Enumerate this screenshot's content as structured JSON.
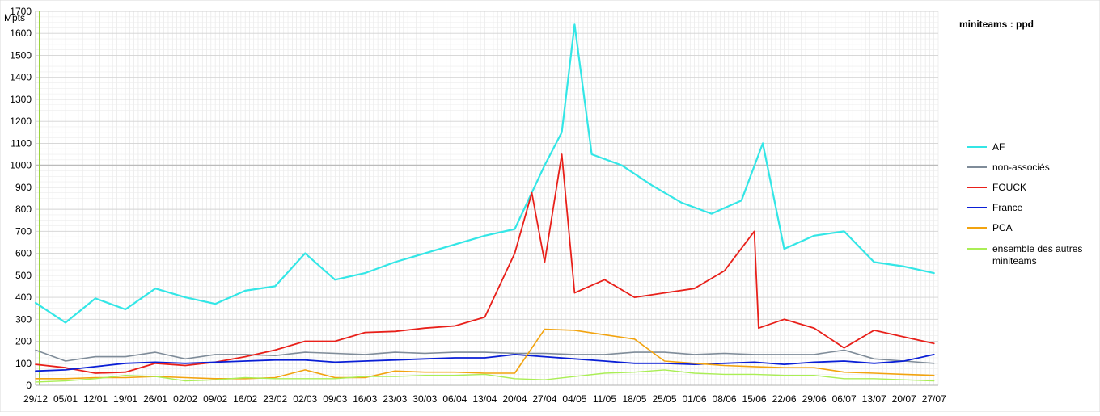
{
  "chart_data": {
    "type": "line",
    "title": "miniteams : ppd",
    "ylabel": "Mpts",
    "ylim": [
      0,
      1700
    ],
    "yticks": [
      0,
      100,
      200,
      300,
      400,
      500,
      600,
      700,
      800,
      900,
      1000,
      1100,
      1200,
      1300,
      1400,
      1500,
      1600,
      1700
    ],
    "x_tick_labels": [
      "29/12",
      "05/01",
      "12/01",
      "19/01",
      "26/01",
      "02/02",
      "09/02",
      "16/02",
      "23/02",
      "02/03",
      "09/03",
      "16/03",
      "23/03",
      "30/03",
      "06/04",
      "13/04",
      "20/04",
      "27/04",
      "04/05",
      "11/05",
      "18/05",
      "25/05",
      "01/06",
      "08/06",
      "15/06",
      "22/06",
      "29/06",
      "06/07",
      "13/07",
      "20/07",
      "27/07"
    ],
    "days": 211,
    "grid": true,
    "reference_line": {
      "value": 1000,
      "color": "#bbbbbb"
    },
    "legend_position": "right",
    "series": [
      {
        "name": "AF",
        "color": "#33e6e6",
        "width": 2.2,
        "points": [
          [
            0,
            375
          ],
          [
            7,
            285
          ],
          [
            14,
            395
          ],
          [
            21,
            345
          ],
          [
            28,
            440
          ],
          [
            35,
            400
          ],
          [
            42,
            370
          ],
          [
            49,
            430
          ],
          [
            56,
            450
          ],
          [
            63,
            600
          ],
          [
            70,
            480
          ],
          [
            77,
            510
          ],
          [
            84,
            560
          ],
          [
            91,
            600
          ],
          [
            98,
            640
          ],
          [
            105,
            680
          ],
          [
            112,
            710
          ],
          [
            119,
            1000
          ],
          [
            123,
            1150
          ],
          [
            126,
            1640
          ],
          [
            130,
            1050
          ],
          [
            137,
            1000
          ],
          [
            144,
            910
          ],
          [
            151,
            830
          ],
          [
            158,
            780
          ],
          [
            165,
            840
          ],
          [
            170,
            1100
          ],
          [
            175,
            620
          ],
          [
            182,
            680
          ],
          [
            189,
            700
          ],
          [
            196,
            560
          ],
          [
            203,
            540
          ],
          [
            210,
            510
          ]
        ]
      },
      {
        "name": "non-associés",
        "color": "#7f8c99",
        "width": 1.6,
        "points": [
          [
            0,
            160
          ],
          [
            7,
            110
          ],
          [
            14,
            130
          ],
          [
            21,
            130
          ],
          [
            28,
            150
          ],
          [
            35,
            120
          ],
          [
            42,
            140
          ],
          [
            49,
            140
          ],
          [
            56,
            135
          ],
          [
            63,
            150
          ],
          [
            70,
            145
          ],
          [
            77,
            140
          ],
          [
            84,
            150
          ],
          [
            91,
            145
          ],
          [
            98,
            150
          ],
          [
            105,
            150
          ],
          [
            112,
            145
          ],
          [
            119,
            145
          ],
          [
            126,
            140
          ],
          [
            133,
            140
          ],
          [
            140,
            150
          ],
          [
            147,
            150
          ],
          [
            154,
            140
          ],
          [
            161,
            145
          ],
          [
            168,
            140
          ],
          [
            175,
            140
          ],
          [
            182,
            140
          ],
          [
            189,
            160
          ],
          [
            196,
            120
          ],
          [
            203,
            110
          ],
          [
            210,
            100
          ]
        ]
      },
      {
        "name": "FOUCK",
        "color": "#e8201a",
        "width": 1.8,
        "points": [
          [
            0,
            95
          ],
          [
            7,
            80
          ],
          [
            14,
            55
          ],
          [
            21,
            60
          ],
          [
            28,
            100
          ],
          [
            35,
            90
          ],
          [
            42,
            105
          ],
          [
            49,
            130
          ],
          [
            56,
            160
          ],
          [
            63,
            200
          ],
          [
            70,
            200
          ],
          [
            77,
            240
          ],
          [
            84,
            245
          ],
          [
            91,
            260
          ],
          [
            98,
            270
          ],
          [
            105,
            310
          ],
          [
            112,
            600
          ],
          [
            116,
            875
          ],
          [
            119,
            560
          ],
          [
            123,
            1050
          ],
          [
            126,
            420
          ],
          [
            133,
            480
          ],
          [
            140,
            400
          ],
          [
            147,
            420
          ],
          [
            154,
            440
          ],
          [
            161,
            520
          ],
          [
            168,
            700
          ],
          [
            169,
            260
          ],
          [
            175,
            300
          ],
          [
            182,
            260
          ],
          [
            189,
            170
          ],
          [
            196,
            250
          ],
          [
            203,
            220
          ],
          [
            210,
            190
          ]
        ]
      },
      {
        "name": "France",
        "color": "#0a1fd6",
        "width": 1.8,
        "points": [
          [
            0,
            65
          ],
          [
            7,
            70
          ],
          [
            14,
            85
          ],
          [
            21,
            100
          ],
          [
            28,
            105
          ],
          [
            35,
            100
          ],
          [
            42,
            105
          ],
          [
            49,
            110
          ],
          [
            56,
            115
          ],
          [
            63,
            115
          ],
          [
            70,
            105
          ],
          [
            77,
            110
          ],
          [
            84,
            115
          ],
          [
            91,
            120
          ],
          [
            98,
            125
          ],
          [
            105,
            125
          ],
          [
            112,
            140
          ],
          [
            119,
            130
          ],
          [
            126,
            120
          ],
          [
            133,
            110
          ],
          [
            140,
            100
          ],
          [
            147,
            100
          ],
          [
            154,
            95
          ],
          [
            161,
            100
          ],
          [
            168,
            105
          ],
          [
            175,
            95
          ],
          [
            182,
            105
          ],
          [
            189,
            110
          ],
          [
            196,
            100
          ],
          [
            203,
            110
          ],
          [
            210,
            140
          ]
        ]
      },
      {
        "name": "PCA",
        "color": "#f2a30f",
        "width": 1.6,
        "points": [
          [
            0,
            30
          ],
          [
            7,
            30
          ],
          [
            14,
            35
          ],
          [
            21,
            35
          ],
          [
            28,
            40
          ],
          [
            35,
            35
          ],
          [
            42,
            30
          ],
          [
            49,
            30
          ],
          [
            56,
            35
          ],
          [
            63,
            70
          ],
          [
            70,
            35
          ],
          [
            77,
            35
          ],
          [
            84,
            65
          ],
          [
            91,
            60
          ],
          [
            98,
            60
          ],
          [
            105,
            55
          ],
          [
            112,
            55
          ],
          [
            119,
            255
          ],
          [
            126,
            250
          ],
          [
            133,
            230
          ],
          [
            140,
            210
          ],
          [
            147,
            110
          ],
          [
            154,
            100
          ],
          [
            161,
            90
          ],
          [
            168,
            85
          ],
          [
            175,
            80
          ],
          [
            182,
            80
          ],
          [
            189,
            60
          ],
          [
            196,
            55
          ],
          [
            203,
            50
          ],
          [
            210,
            45
          ]
        ]
      },
      {
        "name": "ensemble des autres miniteams",
        "color": "#aaee55",
        "width": 1.4,
        "points": [
          [
            0,
            15
          ],
          [
            7,
            20
          ],
          [
            14,
            30
          ],
          [
            21,
            45
          ],
          [
            28,
            40
          ],
          [
            35,
            20
          ],
          [
            42,
            25
          ],
          [
            49,
            35
          ],
          [
            56,
            30
          ],
          [
            63,
            30
          ],
          [
            70,
            30
          ],
          [
            77,
            40
          ],
          [
            84,
            40
          ],
          [
            91,
            45
          ],
          [
            98,
            45
          ],
          [
            105,
            50
          ],
          [
            112,
            30
          ],
          [
            119,
            25
          ],
          [
            126,
            40
          ],
          [
            133,
            55
          ],
          [
            140,
            60
          ],
          [
            147,
            70
          ],
          [
            154,
            55
          ],
          [
            161,
            50
          ],
          [
            168,
            50
          ],
          [
            175,
            45
          ],
          [
            182,
            45
          ],
          [
            189,
            30
          ],
          [
            196,
            30
          ],
          [
            203,
            25
          ],
          [
            210,
            20
          ]
        ]
      }
    ]
  }
}
